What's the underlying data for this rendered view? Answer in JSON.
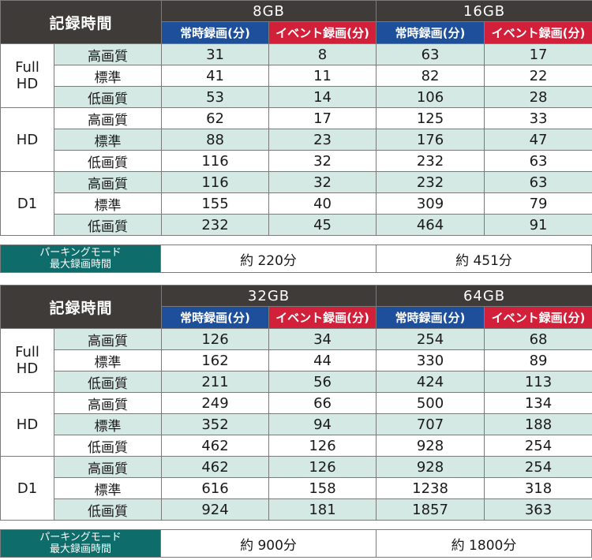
{
  "header": {
    "title": "記録時間",
    "col_normal": "常時録画(分)",
    "col_event": "イベント録画(分)"
  },
  "resolutions": [
    "Full\nHD",
    "HD",
    "D1"
  ],
  "qualities": [
    "高画質",
    "標準",
    "低画質"
  ],
  "parking_label": {
    "line1": "パーキングモード",
    "line2": "最大録画時間"
  },
  "tables": [
    {
      "capacities": [
        "8GB",
        "16GB"
      ],
      "rows": [
        [
          "31",
          "8",
          "63",
          "17"
        ],
        [
          "41",
          "11",
          "82",
          "22"
        ],
        [
          "53",
          "14",
          "106",
          "28"
        ],
        [
          "62",
          "17",
          "125",
          "33"
        ],
        [
          "88",
          "23",
          "176",
          "47"
        ],
        [
          "116",
          "32",
          "232",
          "63"
        ],
        [
          "116",
          "32",
          "232",
          "63"
        ],
        [
          "155",
          "40",
          "309",
          "79"
        ],
        [
          "232",
          "45",
          "464",
          "91"
        ]
      ],
      "parking": [
        "約 220分",
        "約 451分"
      ]
    },
    {
      "capacities": [
        "32GB",
        "64GB"
      ],
      "rows": [
        [
          "126",
          "34",
          "254",
          "68"
        ],
        [
          "162",
          "44",
          "330",
          "89"
        ],
        [
          "211",
          "56",
          "424",
          "113"
        ],
        [
          "249",
          "66",
          "500",
          "134"
        ],
        [
          "352",
          "94",
          "707",
          "188"
        ],
        [
          "462",
          "126",
          "928",
          "254"
        ],
        [
          "462",
          "126",
          "928",
          "254"
        ],
        [
          "616",
          "158",
          "1238",
          "318"
        ],
        [
          "924",
          "181",
          "1857",
          "363"
        ]
      ],
      "parking": [
        "約 900分",
        "約 1800分"
      ]
    }
  ]
}
